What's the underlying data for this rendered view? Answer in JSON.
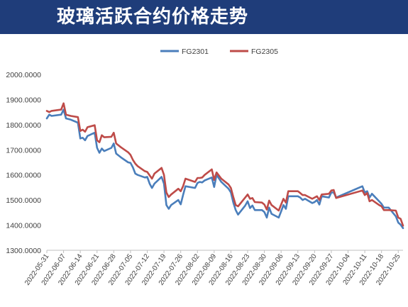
{
  "header": {
    "title": "玻璃活跃合约价格走势"
  },
  "colors": {
    "header_bg": "#1f3d7a",
    "FG2301": "#4a7ebb",
    "FG2305": "#be4b48"
  },
  "chart_data": {
    "type": "line",
    "title": "",
    "xlabel": "",
    "ylabel": "",
    "legend_position": "top-center",
    "grid": false,
    "ylim": [
      1300,
      2000
    ],
    "yticks": [
      "1300.0000",
      "1400.0000",
      "1500.0000",
      "1600.0000",
      "1700.0000",
      "1800.0000",
      "1900.0000",
      "2000.0000"
    ],
    "xticks": [
      "2022-05-31",
      "2022-06-07",
      "2022-06-14",
      "2022-06-21",
      "2022-06-28",
      "2022-07-05",
      "2022-07-12",
      "2022-07-19",
      "2022-07-26",
      "2022-08-02",
      "2022-08-09",
      "2022-08-16",
      "2022-08-23",
      "2022-08-30",
      "2022-09-06",
      "2022-09-13",
      "2022-09-20",
      "2022-09-27",
      "2022-10-04",
      "2022-10-11",
      "2022-10-18",
      "2022-10-25"
    ],
    "x_range": [
      "2022-05-31",
      "2022-10-27"
    ],
    "series": [
      {
        "name": "FG2301",
        "color": "#4a7ebb",
        "points": [
          [
            "2022-05-31",
            1825
          ],
          [
            "2022-06-01",
            1840
          ],
          [
            "2022-06-02",
            1835
          ],
          [
            "2022-06-06",
            1840
          ],
          [
            "2022-06-07",
            1860
          ],
          [
            "2022-06-08",
            1825
          ],
          [
            "2022-06-10",
            1820
          ],
          [
            "2022-06-13",
            1808
          ],
          [
            "2022-06-14",
            1745
          ],
          [
            "2022-06-15",
            1748
          ],
          [
            "2022-06-16",
            1738
          ],
          [
            "2022-06-17",
            1755
          ],
          [
            "2022-06-20",
            1768
          ],
          [
            "2022-06-21",
            1708
          ],
          [
            "2022-06-22",
            1688
          ],
          [
            "2022-06-23",
            1705
          ],
          [
            "2022-06-24",
            1695
          ],
          [
            "2022-06-27",
            1708
          ],
          [
            "2022-06-28",
            1725
          ],
          [
            "2022-06-29",
            1685
          ],
          [
            "2022-07-01",
            1670
          ],
          [
            "2022-07-04",
            1650
          ],
          [
            "2022-07-05",
            1648
          ],
          [
            "2022-07-06",
            1630
          ],
          [
            "2022-07-07",
            1605
          ],
          [
            "2022-07-08",
            1600
          ],
          [
            "2022-07-11",
            1590
          ],
          [
            "2022-07-12",
            1592
          ],
          [
            "2022-07-13",
            1565
          ],
          [
            "2022-07-14",
            1548
          ],
          [
            "2022-07-15",
            1565
          ],
          [
            "2022-07-18",
            1592
          ],
          [
            "2022-07-19",
            1565
          ],
          [
            "2022-07-20",
            1480
          ],
          [
            "2022-07-21",
            1465
          ],
          [
            "2022-07-22",
            1480
          ],
          [
            "2022-07-25",
            1500
          ],
          [
            "2022-07-26",
            1483
          ],
          [
            "2022-07-27",
            1520
          ],
          [
            "2022-07-28",
            1555
          ],
          [
            "2022-08-01",
            1548
          ],
          [
            "2022-08-02",
            1568
          ],
          [
            "2022-08-03",
            1572
          ],
          [
            "2022-08-04",
            1570
          ],
          [
            "2022-08-05",
            1578
          ],
          [
            "2022-08-08",
            1590
          ],
          [
            "2022-08-09",
            1552
          ],
          [
            "2022-08-10",
            1600
          ],
          [
            "2022-08-12",
            1572
          ],
          [
            "2022-08-15",
            1545
          ],
          [
            "2022-08-16",
            1530
          ],
          [
            "2022-08-17",
            1490
          ],
          [
            "2022-08-18",
            1460
          ],
          [
            "2022-08-19",
            1442
          ],
          [
            "2022-08-22",
            1478
          ],
          [
            "2022-08-23",
            1495
          ],
          [
            "2022-08-24",
            1468
          ],
          [
            "2022-08-25",
            1478
          ],
          [
            "2022-08-26",
            1460
          ],
          [
            "2022-08-29",
            1460
          ],
          [
            "2022-08-30",
            1452
          ],
          [
            "2022-08-31",
            1430
          ],
          [
            "2022-09-01",
            1470
          ],
          [
            "2022-09-02",
            1445
          ],
          [
            "2022-09-05",
            1430
          ],
          [
            "2022-09-06",
            1455
          ],
          [
            "2022-09-07",
            1480
          ],
          [
            "2022-09-08",
            1465
          ],
          [
            "2022-09-09",
            1515
          ],
          [
            "2022-09-13",
            1515
          ],
          [
            "2022-09-14",
            1510
          ],
          [
            "2022-09-15",
            1500
          ],
          [
            "2022-09-16",
            1505
          ],
          [
            "2022-09-19",
            1488
          ],
          [
            "2022-09-20",
            1492
          ],
          [
            "2022-09-21",
            1500
          ],
          [
            "2022-09-22",
            1482
          ],
          [
            "2022-09-23",
            1515
          ],
          [
            "2022-09-26",
            1510
          ],
          [
            "2022-09-27",
            1530
          ],
          [
            "2022-09-28",
            1530
          ],
          [
            "2022-09-29",
            1510
          ],
          [
            "2022-10-10",
            1555
          ],
          [
            "2022-10-11",
            1530
          ],
          [
            "2022-10-12",
            1535
          ],
          [
            "2022-10-13",
            1510
          ],
          [
            "2022-10-14",
            1525
          ],
          [
            "2022-10-17",
            1495
          ],
          [
            "2022-10-18",
            1485
          ],
          [
            "2022-10-19",
            1470
          ],
          [
            "2022-10-21",
            1470
          ],
          [
            "2022-10-24",
            1435
          ],
          [
            "2022-10-25",
            1410
          ],
          [
            "2022-10-26",
            1402
          ],
          [
            "2022-10-27",
            1388
          ]
        ]
      },
      {
        "name": "FG2305",
        "color": "#be4b48",
        "points": [
          [
            "2022-05-31",
            1855
          ],
          [
            "2022-06-01",
            1850
          ],
          [
            "2022-06-02",
            1855
          ],
          [
            "2022-06-06",
            1860
          ],
          [
            "2022-06-07",
            1885
          ],
          [
            "2022-06-08",
            1840
          ],
          [
            "2022-06-10",
            1835
          ],
          [
            "2022-06-13",
            1830
          ],
          [
            "2022-06-14",
            1775
          ],
          [
            "2022-06-15",
            1780
          ],
          [
            "2022-06-16",
            1772
          ],
          [
            "2022-06-17",
            1790
          ],
          [
            "2022-06-20",
            1798
          ],
          [
            "2022-06-21",
            1738
          ],
          [
            "2022-06-22",
            1730
          ],
          [
            "2022-06-23",
            1758
          ],
          [
            "2022-06-24",
            1750
          ],
          [
            "2022-06-27",
            1752
          ],
          [
            "2022-06-28",
            1768
          ],
          [
            "2022-06-29",
            1725
          ],
          [
            "2022-07-01",
            1710
          ],
          [
            "2022-07-04",
            1690
          ],
          [
            "2022-07-05",
            1680
          ],
          [
            "2022-07-06",
            1660
          ],
          [
            "2022-07-07",
            1645
          ],
          [
            "2022-07-08",
            1635
          ],
          [
            "2022-07-11",
            1615
          ],
          [
            "2022-07-12",
            1612
          ],
          [
            "2022-07-13",
            1598
          ],
          [
            "2022-07-14",
            1585
          ],
          [
            "2022-07-15",
            1605
          ],
          [
            "2022-07-18",
            1628
          ],
          [
            "2022-07-19",
            1600
          ],
          [
            "2022-07-20",
            1530
          ],
          [
            "2022-07-21",
            1512
          ],
          [
            "2022-07-22",
            1522
          ],
          [
            "2022-07-25",
            1545
          ],
          [
            "2022-07-26",
            1535
          ],
          [
            "2022-07-27",
            1555
          ],
          [
            "2022-07-28",
            1585
          ],
          [
            "2022-08-01",
            1572
          ],
          [
            "2022-08-02",
            1588
          ],
          [
            "2022-08-03",
            1588
          ],
          [
            "2022-08-04",
            1590
          ],
          [
            "2022-08-05",
            1600
          ],
          [
            "2022-08-08",
            1622
          ],
          [
            "2022-08-09",
            1580
          ],
          [
            "2022-08-10",
            1610
          ],
          [
            "2022-08-12",
            1585
          ],
          [
            "2022-08-15",
            1562
          ],
          [
            "2022-08-16",
            1548
          ],
          [
            "2022-08-17",
            1512
          ],
          [
            "2022-08-18",
            1480
          ],
          [
            "2022-08-19",
            1475
          ],
          [
            "2022-08-22",
            1510
          ],
          [
            "2022-08-23",
            1522
          ],
          [
            "2022-08-24",
            1505
          ],
          [
            "2022-08-25",
            1508
          ],
          [
            "2022-08-26",
            1492
          ],
          [
            "2022-08-29",
            1490
          ],
          [
            "2022-08-30",
            1482
          ],
          [
            "2022-08-31",
            1462
          ],
          [
            "2022-09-01",
            1498
          ],
          [
            "2022-09-02",
            1480
          ],
          [
            "2022-09-05",
            1458
          ],
          [
            "2022-09-06",
            1482
          ],
          [
            "2022-09-07",
            1505
          ],
          [
            "2022-09-08",
            1490
          ],
          [
            "2022-09-09",
            1535
          ],
          [
            "2022-09-13",
            1535
          ],
          [
            "2022-09-14",
            1528
          ],
          [
            "2022-09-15",
            1520
          ],
          [
            "2022-09-16",
            1520
          ],
          [
            "2022-09-19",
            1505
          ],
          [
            "2022-09-20",
            1510
          ],
          [
            "2022-09-21",
            1515
          ],
          [
            "2022-09-22",
            1500
          ],
          [
            "2022-09-23",
            1522
          ],
          [
            "2022-09-26",
            1525
          ],
          [
            "2022-09-27",
            1538
          ],
          [
            "2022-09-28",
            1540
          ],
          [
            "2022-09-29",
            1508
          ],
          [
            "2022-10-10",
            1538
          ],
          [
            "2022-10-11",
            1520
          ],
          [
            "2022-10-12",
            1528
          ],
          [
            "2022-10-13",
            1495
          ],
          [
            "2022-10-14",
            1500
          ],
          [
            "2022-10-17",
            1480
          ],
          [
            "2022-10-18",
            1475
          ],
          [
            "2022-10-19",
            1460
          ],
          [
            "2022-10-21",
            1460
          ],
          [
            "2022-10-24",
            1458
          ],
          [
            "2022-10-25",
            1430
          ],
          [
            "2022-10-26",
            1425
          ],
          [
            "2022-10-27",
            1398
          ]
        ]
      }
    ]
  }
}
